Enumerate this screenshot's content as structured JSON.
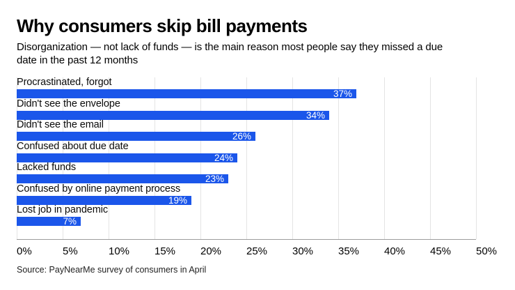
{
  "header": {
    "title": "Why consumers skip bill payments",
    "subtitle_line1": "Disorganization — not lack of funds — is the main reason most people say they missed a due",
    "subtitle_line2": "date in the past 12 months"
  },
  "chart_data": {
    "type": "bar",
    "orientation": "horizontal",
    "title": "Why consumers skip bill payments",
    "subtitle": "Disorganization — not lack of funds — is the main reason most people say they missed a due date in the past 12 months",
    "categories": [
      "Procrastinated, forgot",
      "Didn't see the envelope",
      "Didn't see the email",
      "Confused about due date",
      "Lacked funds",
      "Confused by online payment process",
      "Lost job in pandemic"
    ],
    "values": [
      37,
      34,
      26,
      24,
      23,
      19,
      7
    ],
    "value_labels": [
      "37%",
      "34%",
      "26%",
      "24%",
      "23%",
      "19%",
      "7%"
    ],
    "xlabel": "",
    "ylabel": "",
    "xlim": [
      0,
      50
    ],
    "x_ticks": [
      "0%",
      "5%",
      "10%",
      "15%",
      "20%",
      "25%",
      "30%",
      "35%",
      "40%",
      "45%",
      "50%"
    ],
    "grid": true,
    "legend": "none",
    "bar_color": "#1b56ea",
    "gridline_color": "#e4e4e4",
    "axis_line_color": "#9c9c9c",
    "value_label_color": "#ffffff"
  },
  "source": "Source: PayNearMe survey of consumers in April"
}
